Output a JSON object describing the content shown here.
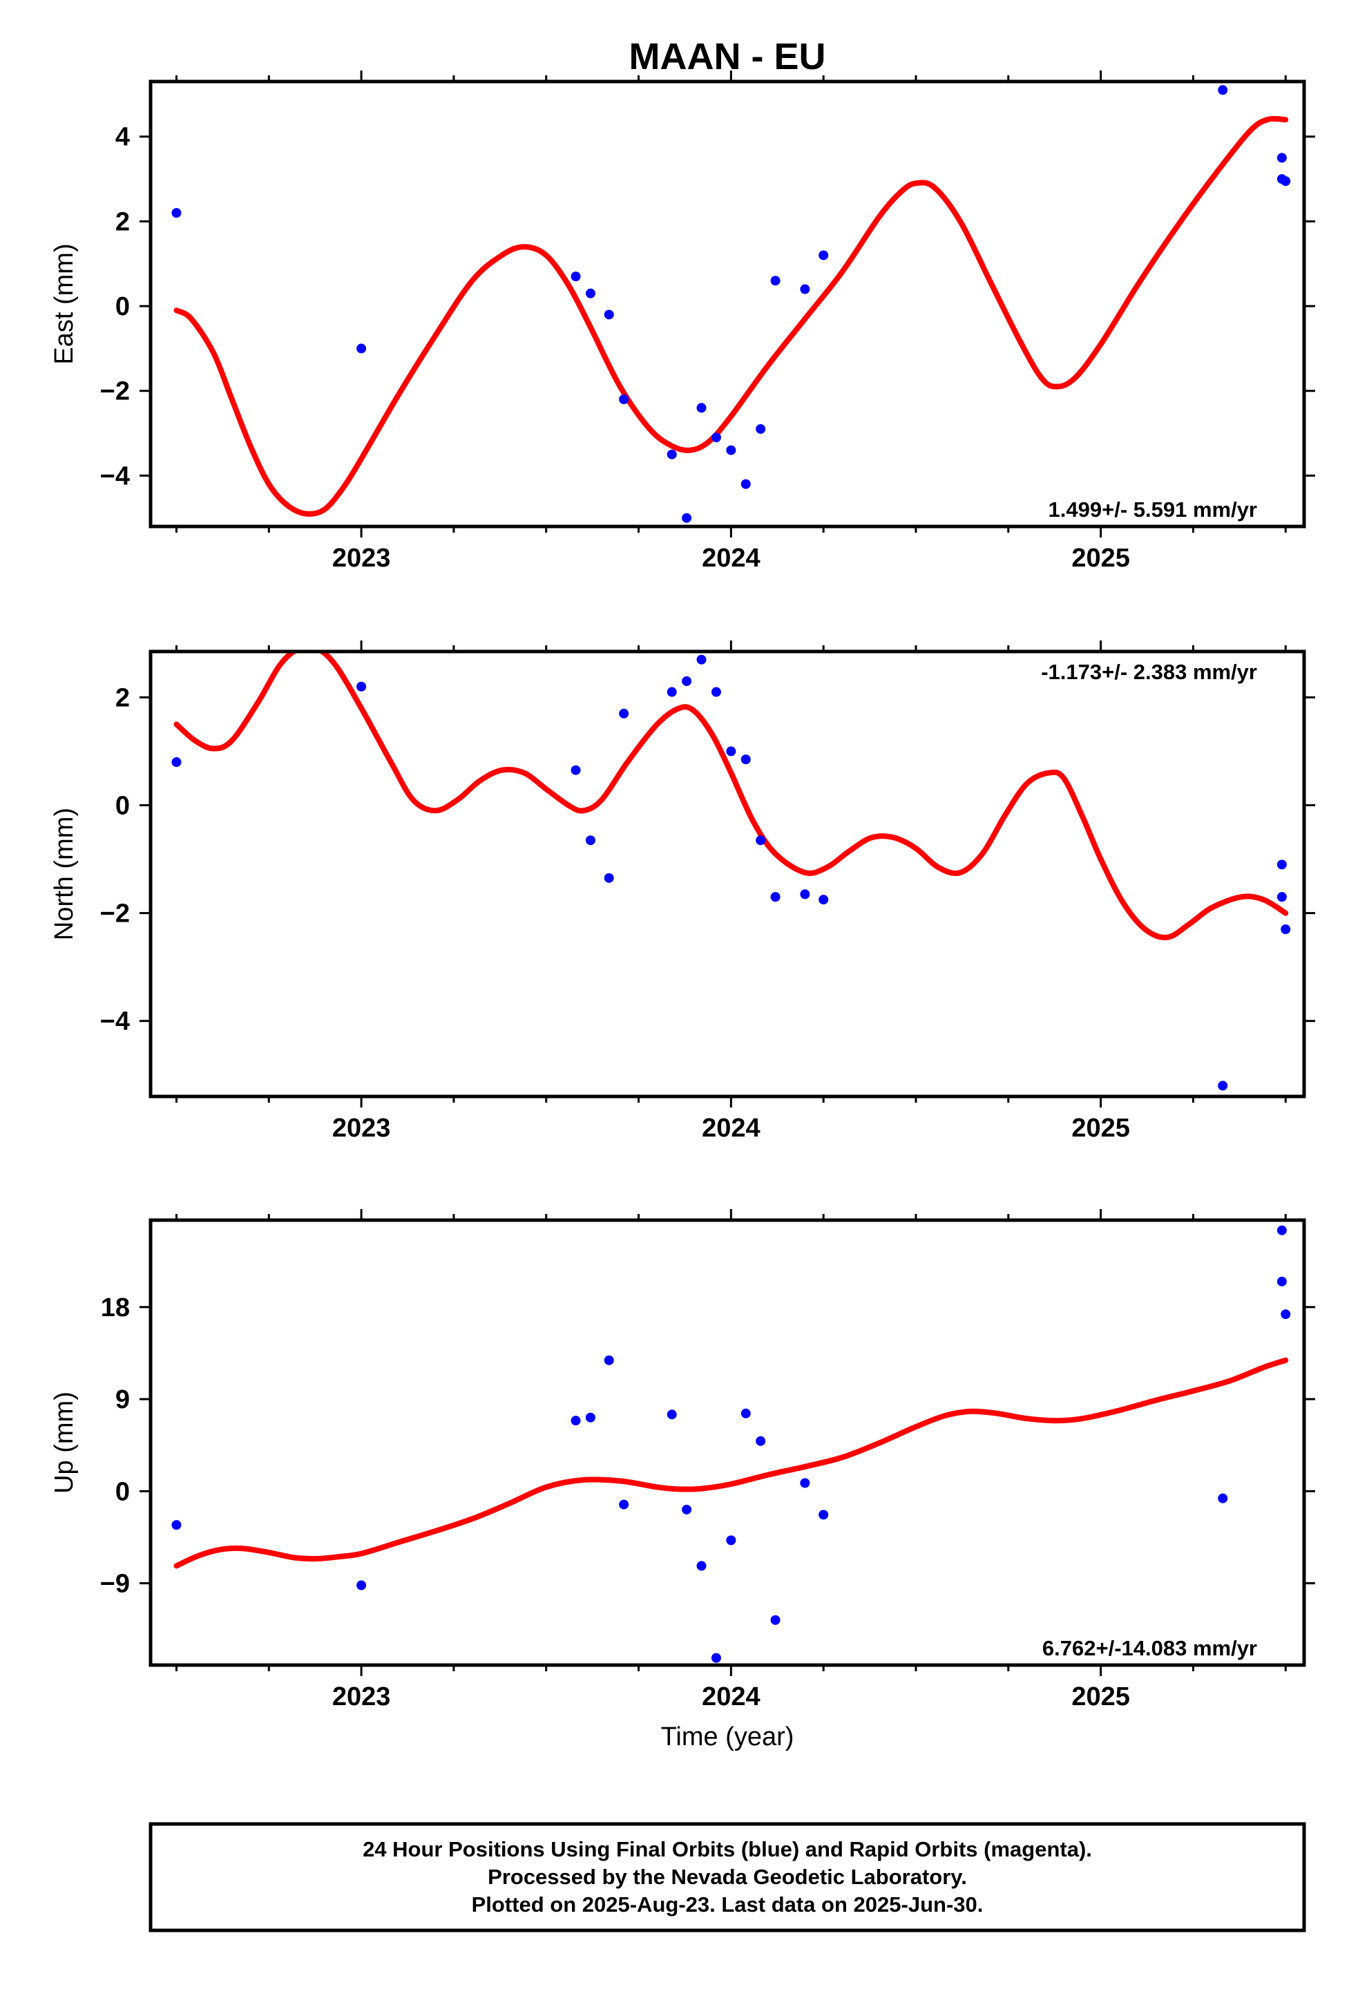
{
  "title": "MAAN - EU",
  "xlabel": "Time (year)",
  "footer": {
    "line1": "24 Hour Positions Using Final Orbits (blue) and Rapid Orbits (magenta).",
    "line2": "Processed by the Nevada Geodetic Laboratory.",
    "line3": "Plotted on 2025-Aug-23. Last data on 2025-Jun-30."
  },
  "colors": {
    "points": "#0000ff",
    "model": "#ff0000",
    "frame": "#000000"
  },
  "chart_data": [
    {
      "type": "scatter",
      "ylabel": "East (mm)",
      "rate_text": "1.499+/- 5.591 mm/yr",
      "rate_position": "bottom-right",
      "xlim": [
        2022.43,
        2025.55
      ],
      "ylim": [
        -5.2,
        5.3
      ],
      "yticks": [
        -4,
        -2,
        0,
        2,
        4
      ],
      "xticks": [
        2023,
        2024,
        2025
      ],
      "grid": false,
      "series": [
        {
          "role": "observations",
          "points": [
            [
              2022.5,
              2.2
            ],
            [
              2023.0,
              -1.0
            ],
            [
              2023.58,
              0.7
            ],
            [
              2023.62,
              0.3
            ],
            [
              2023.67,
              -0.2
            ],
            [
              2023.71,
              -2.2
            ],
            [
              2023.84,
              -3.5
            ],
            [
              2023.88,
              -5.0
            ],
            [
              2023.92,
              -2.4
            ],
            [
              2023.96,
              -3.1
            ],
            [
              2024.0,
              -3.4
            ],
            [
              2024.04,
              -4.2
            ],
            [
              2024.08,
              -2.9
            ],
            [
              2024.12,
              0.6
            ],
            [
              2024.2,
              0.4
            ],
            [
              2024.25,
              1.2
            ],
            [
              2025.33,
              5.1
            ],
            [
              2025.49,
              3.5
            ],
            [
              2025.49,
              3.0
            ],
            [
              2025.5,
              2.95
            ]
          ]
        },
        {
          "role": "model",
          "points": [
            [
              2022.5,
              -0.1
            ],
            [
              2022.54,
              -0.3
            ],
            [
              2022.6,
              -1.1
            ],
            [
              2022.65,
              -2.2
            ],
            [
              2022.7,
              -3.3
            ],
            [
              2022.75,
              -4.2
            ],
            [
              2022.8,
              -4.7
            ],
            [
              2022.85,
              -4.9
            ],
            [
              2022.9,
              -4.8
            ],
            [
              2022.95,
              -4.3
            ],
            [
              2023.0,
              -3.6
            ],
            [
              2023.1,
              -2.1
            ],
            [
              2023.2,
              -0.7
            ],
            [
              2023.3,
              0.6
            ],
            [
              2023.38,
              1.2
            ],
            [
              2023.44,
              1.4
            ],
            [
              2023.5,
              1.2
            ],
            [
              2023.56,
              0.5
            ],
            [
              2023.62,
              -0.5
            ],
            [
              2023.7,
              -1.9
            ],
            [
              2023.78,
              -2.9
            ],
            [
              2023.84,
              -3.3
            ],
            [
              2023.89,
              -3.4
            ],
            [
              2023.94,
              -3.2
            ],
            [
              2024.0,
              -2.6
            ],
            [
              2024.1,
              -1.4
            ],
            [
              2024.2,
              -0.3
            ],
            [
              2024.3,
              0.8
            ],
            [
              2024.4,
              2.1
            ],
            [
              2024.46,
              2.7
            ],
            [
              2024.5,
              2.9
            ],
            [
              2024.55,
              2.8
            ],
            [
              2024.62,
              2.0
            ],
            [
              2024.7,
              0.6
            ],
            [
              2024.78,
              -0.8
            ],
            [
              2024.84,
              -1.7
            ],
            [
              2024.88,
              -1.9
            ],
            [
              2024.93,
              -1.7
            ],
            [
              2025.0,
              -0.9
            ],
            [
              2025.1,
              0.5
            ],
            [
              2025.2,
              1.8
            ],
            [
              2025.3,
              3.0
            ],
            [
              2025.4,
              4.1
            ],
            [
              2025.45,
              4.4
            ],
            [
              2025.5,
              4.4
            ]
          ]
        }
      ]
    },
    {
      "type": "scatter",
      "ylabel": "North (mm)",
      "rate_text": "-1.173+/- 2.383 mm/yr",
      "rate_position": "top-right",
      "xlim": [
        2022.43,
        2025.55
      ],
      "ylim": [
        -5.4,
        2.85
      ],
      "yticks": [
        -4,
        -2,
        0,
        2
      ],
      "xticks": [
        2023,
        2024,
        2025
      ],
      "grid": false,
      "series": [
        {
          "role": "observations",
          "points": [
            [
              2022.5,
              0.8
            ],
            [
              2023.0,
              2.2
            ],
            [
              2023.58,
              0.65
            ],
            [
              2023.62,
              -0.65
            ],
            [
              2023.67,
              -1.35
            ],
            [
              2023.71,
              1.7
            ],
            [
              2023.84,
              2.1
            ],
            [
              2023.88,
              2.3
            ],
            [
              2023.92,
              2.7
            ],
            [
              2023.96,
              2.1
            ],
            [
              2024.0,
              1.0
            ],
            [
              2024.04,
              0.85
            ],
            [
              2024.08,
              -0.65
            ],
            [
              2024.12,
              -1.7
            ],
            [
              2024.2,
              -1.65
            ],
            [
              2024.25,
              -1.75
            ],
            [
              2025.33,
              -5.2
            ],
            [
              2025.49,
              -1.1
            ],
            [
              2025.49,
              -1.7
            ],
            [
              2025.5,
              -2.3
            ]
          ]
        },
        {
          "role": "model",
          "points": [
            [
              2022.5,
              1.5
            ],
            [
              2022.55,
              1.2
            ],
            [
              2022.6,
              1.05
            ],
            [
              2022.65,
              1.2
            ],
            [
              2022.72,
              1.9
            ],
            [
              2022.78,
              2.6
            ],
            [
              2022.83,
              2.9
            ],
            [
              2022.88,
              2.9
            ],
            [
              2022.93,
              2.6
            ],
            [
              2023.0,
              1.8
            ],
            [
              2023.08,
              0.8
            ],
            [
              2023.14,
              0.1
            ],
            [
              2023.2,
              -0.1
            ],
            [
              2023.26,
              0.1
            ],
            [
              2023.32,
              0.45
            ],
            [
              2023.38,
              0.65
            ],
            [
              2023.44,
              0.6
            ],
            [
              2023.5,
              0.3
            ],
            [
              2023.56,
              0.0
            ],
            [
              2023.6,
              -0.1
            ],
            [
              2023.65,
              0.1
            ],
            [
              2023.72,
              0.8
            ],
            [
              2023.8,
              1.5
            ],
            [
              2023.86,
              1.8
            ],
            [
              2023.9,
              1.75
            ],
            [
              2023.95,
              1.3
            ],
            [
              2024.0,
              0.6
            ],
            [
              2024.06,
              -0.3
            ],
            [
              2024.12,
              -0.9
            ],
            [
              2024.2,
              -1.25
            ],
            [
              2024.26,
              -1.15
            ],
            [
              2024.32,
              -0.85
            ],
            [
              2024.38,
              -0.6
            ],
            [
              2024.44,
              -0.6
            ],
            [
              2024.5,
              -0.8
            ],
            [
              2024.56,
              -1.15
            ],
            [
              2024.62,
              -1.25
            ],
            [
              2024.68,
              -0.9
            ],
            [
              2024.74,
              -0.2
            ],
            [
              2024.8,
              0.4
            ],
            [
              2024.86,
              0.6
            ],
            [
              2024.9,
              0.5
            ],
            [
              2024.95,
              -0.2
            ],
            [
              2025.0,
              -1.0
            ],
            [
              2025.06,
              -1.8
            ],
            [
              2025.12,
              -2.3
            ],
            [
              2025.18,
              -2.45
            ],
            [
              2025.24,
              -2.2
            ],
            [
              2025.3,
              -1.9
            ],
            [
              2025.38,
              -1.7
            ],
            [
              2025.44,
              -1.75
            ],
            [
              2025.5,
              -2.0
            ]
          ]
        }
      ]
    },
    {
      "type": "scatter",
      "ylabel": "Up (mm)",
      "rate_text": "6.762+/-14.083 mm/yr",
      "rate_position": "bottom-right",
      "xlim": [
        2022.43,
        2025.55
      ],
      "ylim": [
        -17,
        26.5
      ],
      "yticks": [
        -9,
        0,
        9,
        18
      ],
      "xticks": [
        2023,
        2024,
        2025
      ],
      "grid": false,
      "series": [
        {
          "role": "observations",
          "points": [
            [
              2022.5,
              -3.3
            ],
            [
              2023.0,
              -9.2
            ],
            [
              2023.58,
              6.9
            ],
            [
              2023.62,
              7.2
            ],
            [
              2023.67,
              12.8
            ],
            [
              2023.71,
              -1.3
            ],
            [
              2023.84,
              7.5
            ],
            [
              2023.88,
              -1.8
            ],
            [
              2023.92,
              -7.3
            ],
            [
              2023.96,
              -16.3
            ],
            [
              2024.0,
              -4.8
            ],
            [
              2024.04,
              7.6
            ],
            [
              2024.08,
              4.9
            ],
            [
              2024.12,
              -12.6
            ],
            [
              2024.2,
              0.8
            ],
            [
              2024.25,
              -2.3
            ],
            [
              2025.33,
              -0.7
            ],
            [
              2025.49,
              25.5
            ],
            [
              2025.49,
              20.5
            ],
            [
              2025.5,
              17.3
            ]
          ]
        },
        {
          "role": "model",
          "points": [
            [
              2022.5,
              -7.3
            ],
            [
              2022.56,
              -6.3
            ],
            [
              2022.62,
              -5.7
            ],
            [
              2022.68,
              -5.6
            ],
            [
              2022.75,
              -6.0
            ],
            [
              2022.82,
              -6.5
            ],
            [
              2022.88,
              -6.6
            ],
            [
              2022.94,
              -6.4
            ],
            [
              2023.0,
              -6.1
            ],
            [
              2023.1,
              -5.0
            ],
            [
              2023.2,
              -3.9
            ],
            [
              2023.3,
              -2.7
            ],
            [
              2023.4,
              -1.2
            ],
            [
              2023.5,
              0.4
            ],
            [
              2023.6,
              1.1
            ],
            [
              2023.7,
              1.0
            ],
            [
              2023.8,
              0.4
            ],
            [
              2023.86,
              0.2
            ],
            [
              2023.92,
              0.25
            ],
            [
              2024.0,
              0.7
            ],
            [
              2024.1,
              1.6
            ],
            [
              2024.2,
              2.4
            ],
            [
              2024.3,
              3.3
            ],
            [
              2024.4,
              4.7
            ],
            [
              2024.5,
              6.3
            ],
            [
              2024.58,
              7.4
            ],
            [
              2024.65,
              7.8
            ],
            [
              2024.72,
              7.6
            ],
            [
              2024.8,
              7.1
            ],
            [
              2024.88,
              6.9
            ],
            [
              2024.95,
              7.1
            ],
            [
              2025.05,
              7.9
            ],
            [
              2025.15,
              8.9
            ],
            [
              2025.25,
              9.8
            ],
            [
              2025.35,
              10.8
            ],
            [
              2025.44,
              12.1
            ],
            [
              2025.5,
              12.8
            ]
          ]
        }
      ]
    }
  ]
}
